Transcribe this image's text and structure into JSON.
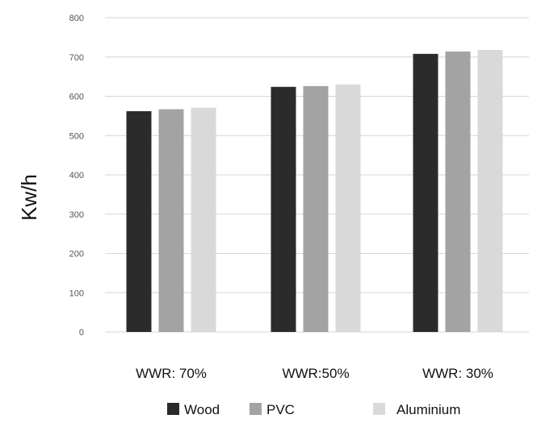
{
  "chart_data": {
    "type": "bar",
    "categories": [
      "WWR: 70%",
      "WWR:50%",
      "WWR: 30%"
    ],
    "series": [
      {
        "name": "Wood",
        "values": [
          562,
          624,
          708
        ],
        "color": "#2b2b2b"
      },
      {
        "name": "PVC",
        "values": [
          567,
          626,
          714
        ],
        "color": "#a3a3a3"
      },
      {
        "name": "Aluminium",
        "values": [
          571,
          630,
          718
        ],
        "color": "#d9d9d9"
      }
    ],
    "ylabel": "Kw/h",
    "ylim": [
      0,
      800
    ],
    "yticks": [
      0,
      100,
      200,
      300,
      400,
      500,
      600,
      700,
      800
    ],
    "grid": true,
    "legend_position": "bottom"
  }
}
